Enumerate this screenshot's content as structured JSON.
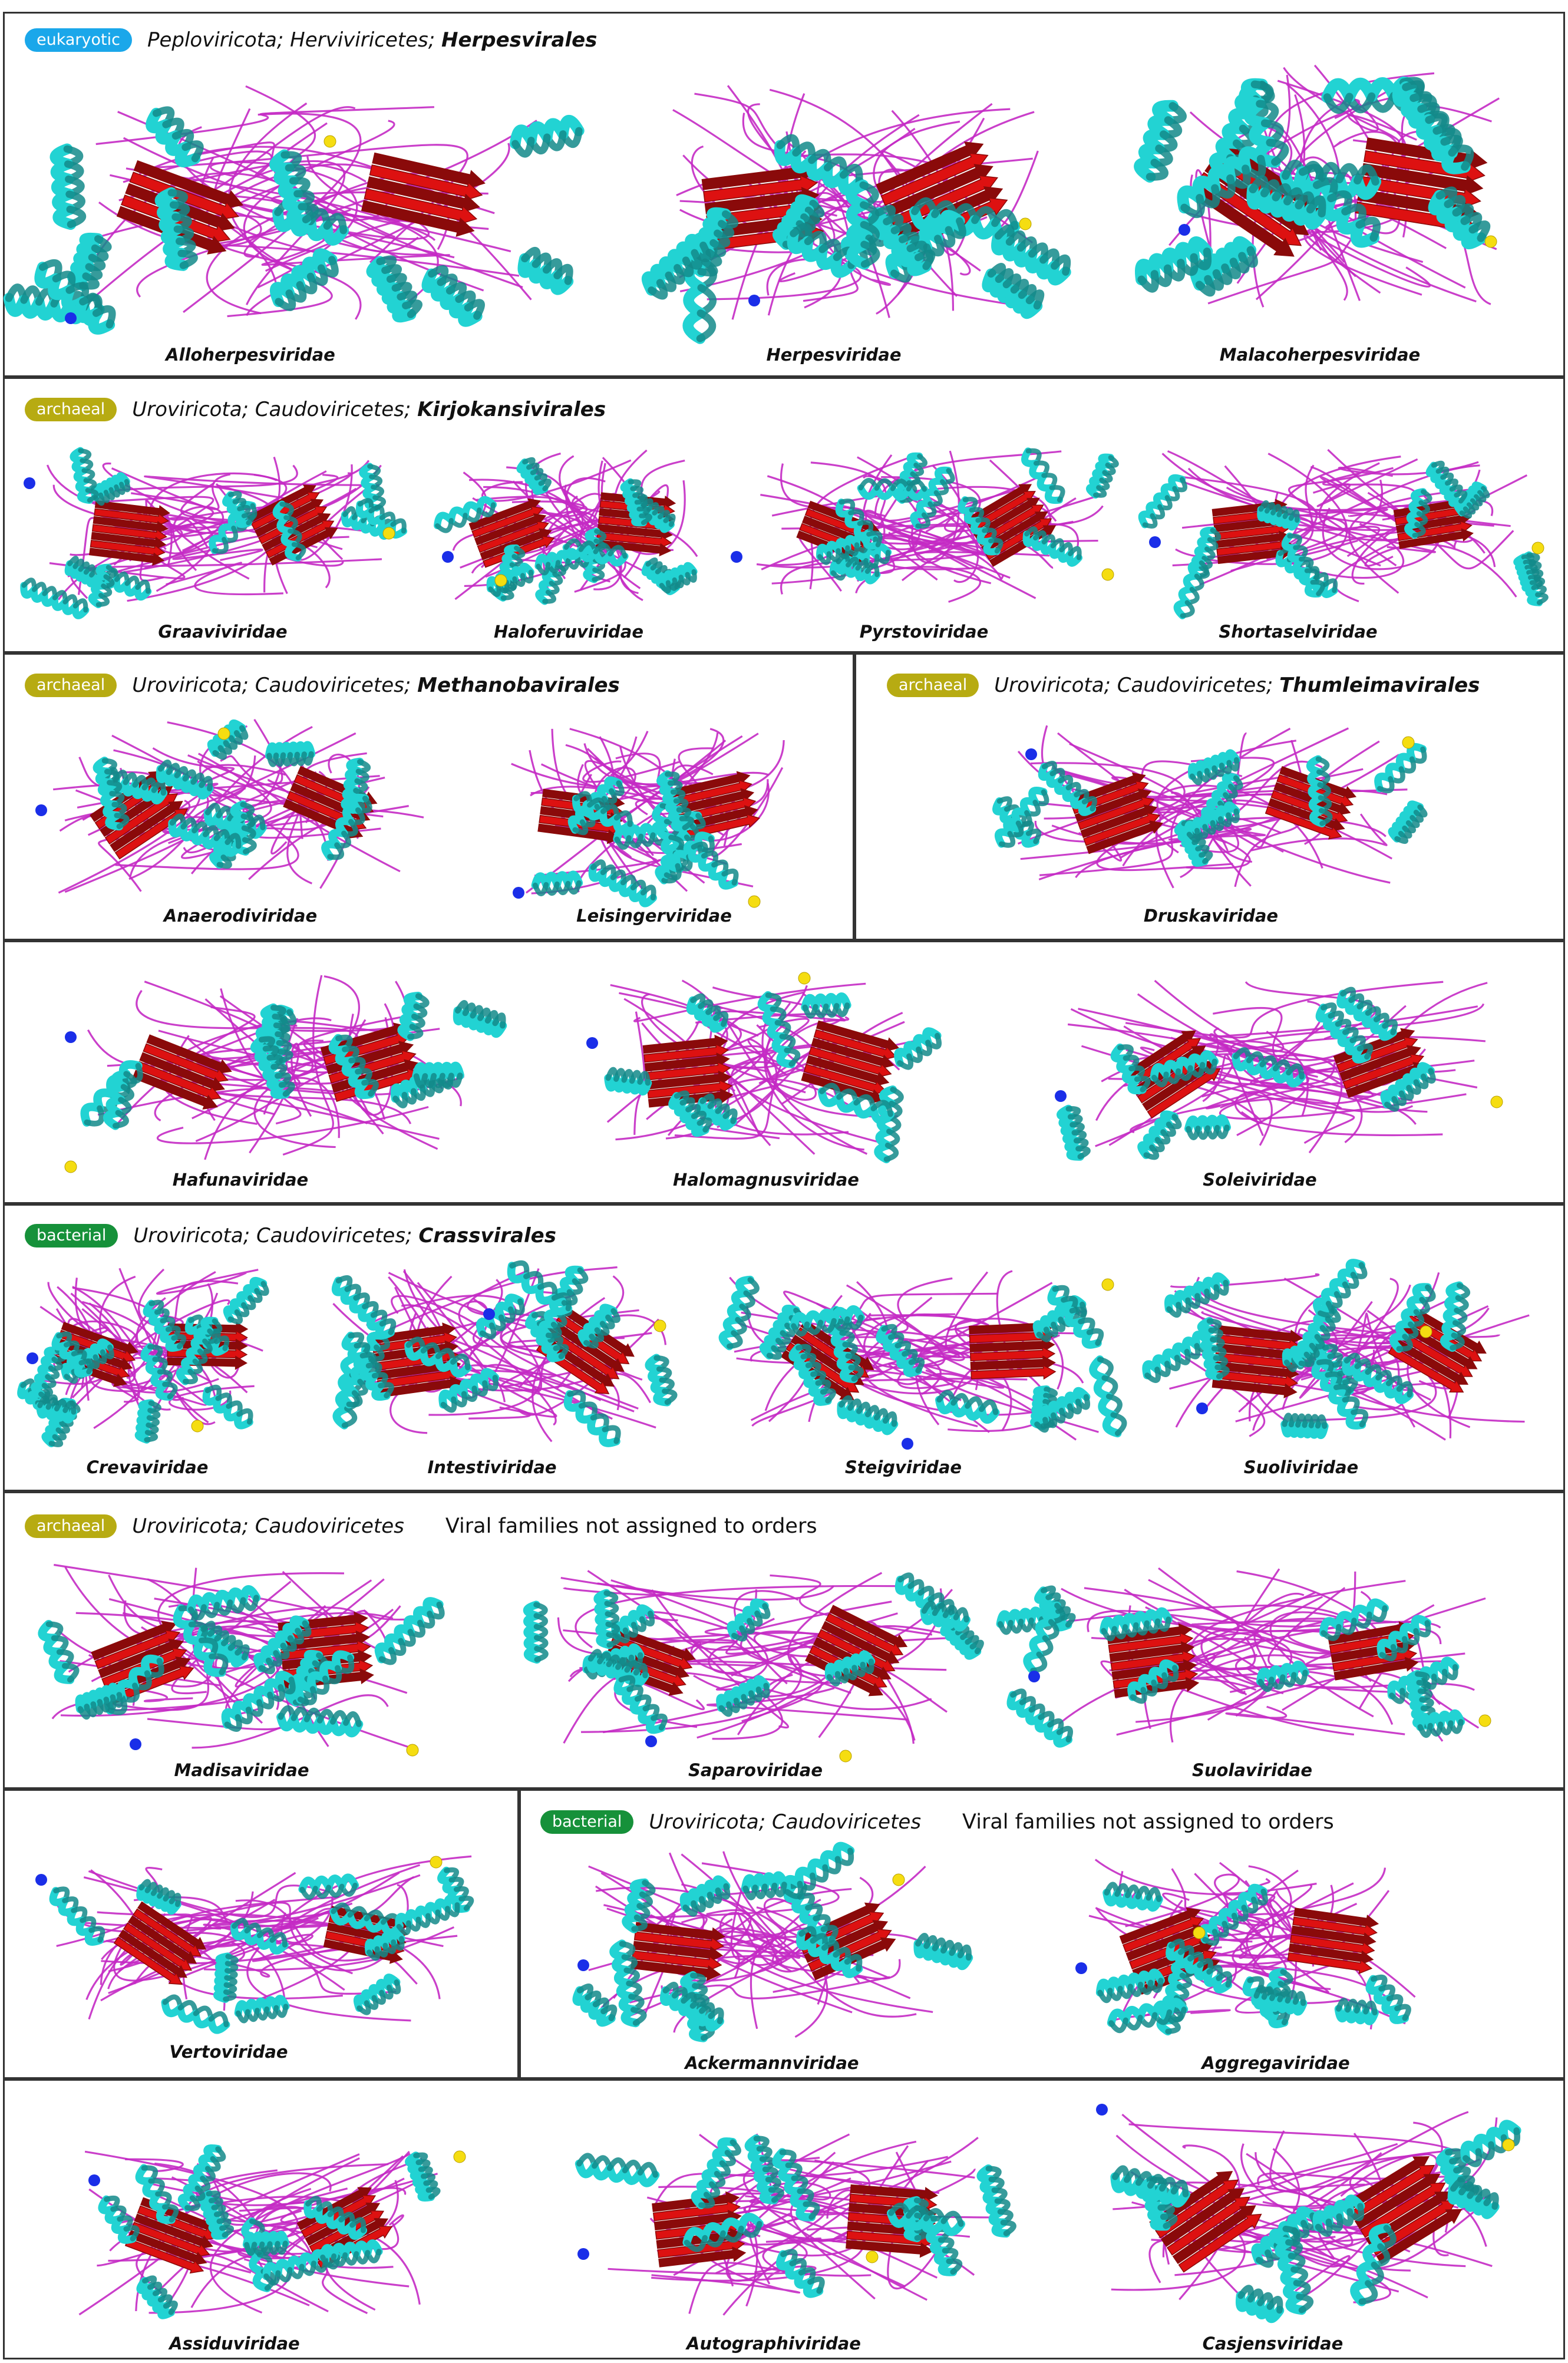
{
  "colors": {
    "helix": "#22d3d3",
    "helix_dark": "#138a8a",
    "strand": "#dd1111",
    "strand_dark": "#8a0a0a",
    "loop": "#c42ac4",
    "n_term": "#1a2ee8",
    "c_term": "#f5dd11",
    "border": "#333333",
    "badge_eukaryotic": "#1aa7ea",
    "badge_archaeal": "#b7ab12",
    "badge_bacterial": "#16913a"
  },
  "panels": {
    "p1": {
      "badge": "eukaryotic",
      "taxon": "Peploviricota; Herviviricetes; ",
      "order": "Herpesvirales",
      "families": [
        "Alloherpesviridae",
        "Herpesviridae",
        "Malacoherpesviridae"
      ]
    },
    "p2": {
      "badge": "archaeal",
      "taxon": "Uroviricota; Caudoviricetes; ",
      "order": "Kirjokansivirales",
      "families": [
        "Graaviviridae",
        "Haloferuviridae",
        "Pyrstoviridae",
        "Shortaselviridae"
      ]
    },
    "p3": {
      "badge": "archaeal",
      "taxon": "Uroviricota; Caudoviricetes; ",
      "order": "Methanobavirales",
      "families": [
        "Anaerodiviridae",
        "Leisingerviridae"
      ]
    },
    "p4": {
      "badge": "archaeal",
      "taxon": "Uroviricota; Caudoviricetes; ",
      "order": "Thumleimavirales",
      "families": [
        "Druskaviridae",
        "Hafunaviridae",
        "Halomagnusviridae",
        "Soleiviridae"
      ]
    },
    "p5": {
      "badge": "bacterial",
      "taxon": "Uroviricota; Caudoviricetes; ",
      "order": "Crassvirales",
      "families": [
        "Crevaviridae",
        "Intestiviridae",
        "Steigviridae",
        "Suoliviridae"
      ]
    },
    "p6": {
      "badge": "archaeal",
      "taxon": "Uroviricota; Caudoviricetes",
      "note": "Viral families not assigned to orders",
      "families": [
        "Madisaviridae",
        "Saparoviridae",
        "Suolaviridae",
        "Vertoviridae"
      ]
    },
    "p7": {
      "badge": "bacterial",
      "taxon": "Uroviricota; Caudoviricetes",
      "note": "Viral families not assigned to orders",
      "families": [
        "Ackermannviridae",
        "Aggregaviridae",
        "Assiduviridae",
        "Autographiviridae",
        "Casjensviridae"
      ]
    }
  }
}
